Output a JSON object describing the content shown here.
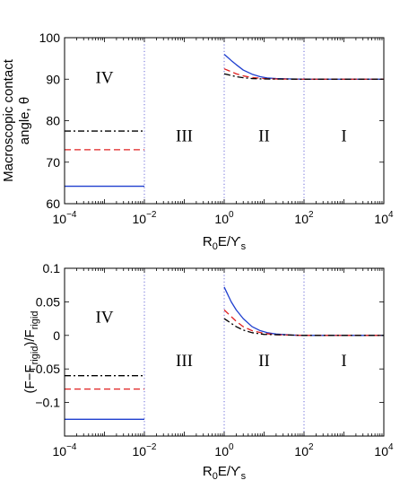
{
  "chart_data": [
    {
      "type": "line",
      "x_scale": "log",
      "xlim": [
        0.0001,
        10000
      ],
      "ylim": [
        60,
        100
      ],
      "xlabel": {
        "base": "R",
        "sub1": "0",
        "mid": "E/ϒ",
        "sub2": "s"
      },
      "ylabel_lines": [
        "Macroscopic contact",
        "angle, θ"
      ],
      "x_tick_labels": [
        {
          "value": 0.0001,
          "base": "10",
          "exp": "−4"
        },
        {
          "value": 0.01,
          "base": "10",
          "exp": "−2"
        },
        {
          "value": 1,
          "base": "10",
          "exp": "0"
        },
        {
          "value": 100,
          "base": "10",
          "exp": "2"
        },
        {
          "value": 10000,
          "base": "10",
          "exp": "4"
        }
      ],
      "y_ticks": [
        {
          "value": 60,
          "label": "60"
        },
        {
          "value": 70,
          "label": "70"
        },
        {
          "value": 80,
          "label": "80"
        },
        {
          "value": 90,
          "label": "90"
        },
        {
          "value": 100,
          "label": "100"
        }
      ],
      "region_boundaries": [
        0.01,
        1,
        100
      ],
      "regions": [
        {
          "label": "IV",
          "x": 0.001,
          "y": 90
        },
        {
          "label": "III",
          "x": 0.1,
          "y": 76
        },
        {
          "label": "II",
          "x": 10,
          "y": 76
        },
        {
          "label": "I",
          "x": 1000,
          "y": 76
        }
      ],
      "series": [
        {
          "color": "#1f3fcf",
          "dash": "solid",
          "segments": [
            [
              [
                0.0001,
                64.2
              ],
              [
                0.01,
                64.2
              ]
            ],
            [
              [
                1,
                96.0
              ],
              [
                1.5,
                94.5
              ],
              [
                2,
                93.5
              ],
              [
                3,
                92.2
              ],
              [
                5,
                91.2
              ],
              [
                8,
                90.6
              ],
              [
                12,
                90.3
              ],
              [
                20,
                90.15
              ],
              [
                50,
                90.05
              ],
              [
                100,
                90.0
              ],
              [
                1000,
                90.0
              ],
              [
                10000,
                90.0
              ]
            ]
          ]
        },
        {
          "color": "#e02020",
          "dash": "dashed",
          "segments": [
            [
              [
                0.0001,
                73.0
              ],
              [
                0.01,
                73.0
              ]
            ],
            [
              [
                1,
                92.5
              ],
              [
                1.5,
                91.8
              ],
              [
                2,
                91.3
              ],
              [
                3,
                90.8
              ],
              [
                5,
                90.4
              ],
              [
                10,
                90.15
              ],
              [
                20,
                90.05
              ],
              [
                100,
                90.0
              ],
              [
                1000,
                90.0
              ],
              [
                10000,
                90.0
              ]
            ]
          ]
        },
        {
          "color": "#000000",
          "dash": "dashdot",
          "segments": [
            [
              [
                0.0001,
                77.5
              ],
              [
                0.01,
                77.5
              ]
            ],
            [
              [
                1,
                91.3
              ],
              [
                1.5,
                90.9
              ],
              [
                2,
                90.6
              ],
              [
                3,
                90.35
              ],
              [
                5,
                90.15
              ],
              [
                10,
                90.05
              ],
              [
                100,
                90.0
              ],
              [
                1000,
                90.0
              ],
              [
                10000,
                90.0
              ]
            ]
          ]
        }
      ]
    },
    {
      "type": "line",
      "x_scale": "log",
      "xlim": [
        0.0001,
        10000
      ],
      "ylim": [
        -0.15,
        0.1
      ],
      "xlabel": {
        "base": "R",
        "sub1": "0",
        "mid": "E/ϒ",
        "sub2": "s"
      },
      "ylabel": {
        "a": "(F−F",
        "b": "rigid",
        "c": ")/F",
        "d": "rigid"
      },
      "x_tick_labels": [
        {
          "value": 0.0001,
          "base": "10",
          "exp": "−4"
        },
        {
          "value": 0.01,
          "base": "10",
          "exp": "−2"
        },
        {
          "value": 1,
          "base": "10",
          "exp": "0"
        },
        {
          "value": 100,
          "base": "10",
          "exp": "2"
        },
        {
          "value": 10000,
          "base": "10",
          "exp": "4"
        }
      ],
      "y_ticks": [
        {
          "value": -0.1,
          "label": "−0.1"
        },
        {
          "value": -0.05,
          "label": "−0.05"
        },
        {
          "value": 0,
          "label": "0"
        },
        {
          "value": 0.05,
          "label": "0.05"
        },
        {
          "value": 0.1,
          "label": "0.1"
        }
      ],
      "region_boundaries": [
        0.01,
        1,
        100
      ],
      "regions": [
        {
          "label": "IV",
          "x": 0.001,
          "y": 0.025
        },
        {
          "label": "III",
          "x": 0.1,
          "y": -0.04
        },
        {
          "label": "II",
          "x": 10,
          "y": -0.04
        },
        {
          "label": "I",
          "x": 1000,
          "y": -0.04
        }
      ],
      "series": [
        {
          "color": "#1f3fcf",
          "dash": "solid",
          "segments": [
            [
              [
                0.0001,
                -0.125
              ],
              [
                0.01,
                -0.125
              ]
            ],
            [
              [
                1,
                0.072
              ],
              [
                1.5,
                0.05
              ],
              [
                2,
                0.038
              ],
              [
                3,
                0.025
              ],
              [
                5,
                0.013
              ],
              [
                8,
                0.007
              ],
              [
                12,
                0.004
              ],
              [
                20,
                0.002
              ],
              [
                50,
                0.0005
              ],
              [
                100,
                0.0
              ],
              [
                1000,
                0.0
              ],
              [
                10000,
                0.0
              ]
            ]
          ]
        },
        {
          "color": "#e02020",
          "dash": "dashed",
          "segments": [
            [
              [
                0.0001,
                -0.08
              ],
              [
                0.01,
                -0.08
              ]
            ],
            [
              [
                1,
                0.038
              ],
              [
                1.5,
                0.028
              ],
              [
                2,
                0.021
              ],
              [
                3,
                0.013
              ],
              [
                5,
                0.007
              ],
              [
                10,
                0.003
              ],
              [
                20,
                0.001
              ],
              [
                100,
                0.0
              ],
              [
                1000,
                0.0
              ],
              [
                10000,
                0.0
              ]
            ]
          ]
        },
        {
          "color": "#000000",
          "dash": "dashdot",
          "segments": [
            [
              [
                0.0001,
                -0.06
              ],
              [
                0.01,
                -0.06
              ]
            ],
            [
              [
                1,
                0.025
              ],
              [
                1.5,
                0.018
              ],
              [
                2,
                0.013
              ],
              [
                3,
                0.008
              ],
              [
                5,
                0.004
              ],
              [
                10,
                0.0015
              ],
              [
                100,
                0.0
              ],
              [
                1000,
                0.0
              ],
              [
                10000,
                0.0
              ]
            ]
          ]
        }
      ]
    }
  ]
}
